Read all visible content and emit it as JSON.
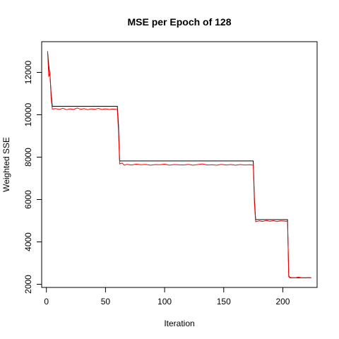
{
  "chart_data": {
    "type": "line",
    "title": "MSE per Epoch of 128",
    "xlabel": "Iteration",
    "ylabel": "Weighted SSE",
    "xlim": [
      -4,
      229
    ],
    "ylim": [
      1850,
      13450
    ],
    "x_ticks": [
      0,
      50,
      100,
      150,
      200
    ],
    "y_ticks": [
      2000,
      4000,
      6000,
      8000,
      10000,
      12000
    ],
    "x_tick_labels": [
      "0",
      "50",
      "100",
      "150",
      "200"
    ],
    "y_tick_labels": [
      "2000",
      "4000",
      "6000",
      "8000",
      "10000",
      "12000"
    ],
    "grid": false,
    "legend": "none",
    "series": [
      {
        "color": "#000000",
        "points": [
          [
            1,
            13000
          ],
          [
            2,
            12300
          ],
          [
            3,
            11900
          ],
          [
            4,
            11000
          ],
          [
            5,
            10400
          ],
          [
            60,
            10400
          ],
          [
            61,
            9500
          ],
          [
            62,
            7820
          ],
          [
            175,
            7820
          ],
          [
            176,
            6000
          ],
          [
            177,
            5050
          ],
          [
            204,
            5050
          ],
          [
            205,
            2400
          ],
          [
            206,
            2310
          ],
          [
            224,
            2310
          ]
        ]
      },
      {
        "color": "#ff0000",
        "points": [
          [
            1,
            13000
          ],
          [
            2,
            11800
          ],
          [
            3,
            12000
          ],
          [
            4,
            10800
          ],
          [
            5,
            10270
          ],
          [
            8,
            10290
          ],
          [
            11,
            10250
          ],
          [
            14,
            10310
          ],
          [
            17,
            10240
          ],
          [
            20,
            10280
          ],
          [
            23,
            10250
          ],
          [
            26,
            10320
          ],
          [
            29,
            10260
          ],
          [
            32,
            10290
          ],
          [
            35,
            10240
          ],
          [
            38,
            10280
          ],
          [
            41,
            10260
          ],
          [
            44,
            10300
          ],
          [
            47,
            10250
          ],
          [
            50,
            10280
          ],
          [
            53,
            10250
          ],
          [
            56,
            10270
          ],
          [
            59,
            10260
          ],
          [
            60,
            10240
          ],
          [
            61,
            9200
          ],
          [
            62,
            7680
          ],
          [
            64,
            7720
          ],
          [
            66,
            7620
          ],
          [
            68,
            7660
          ],
          [
            72,
            7630
          ],
          [
            76,
            7670
          ],
          [
            80,
            7640
          ],
          [
            84,
            7660
          ],
          [
            88,
            7620
          ],
          [
            92,
            7650
          ],
          [
            96,
            7640
          ],
          [
            100,
            7670
          ],
          [
            104,
            7620
          ],
          [
            108,
            7650
          ],
          [
            112,
            7640
          ],
          [
            116,
            7630
          ],
          [
            120,
            7660
          ],
          [
            124,
            7620
          ],
          [
            128,
            7650
          ],
          [
            132,
            7680
          ],
          [
            136,
            7630
          ],
          [
            140,
            7640
          ],
          [
            144,
            7620
          ],
          [
            148,
            7660
          ],
          [
            152,
            7630
          ],
          [
            156,
            7650
          ],
          [
            160,
            7620
          ],
          [
            164,
            7650
          ],
          [
            168,
            7630
          ],
          [
            172,
            7640
          ],
          [
            175,
            7620
          ],
          [
            176,
            5800
          ],
          [
            177,
            4950
          ],
          [
            180,
            4990
          ],
          [
            183,
            4960
          ],
          [
            186,
            5010
          ],
          [
            189,
            4970
          ],
          [
            192,
            5000
          ],
          [
            195,
            4960
          ],
          [
            198,
            4990
          ],
          [
            201,
            4980
          ],
          [
            204,
            4970
          ],
          [
            205,
            2350
          ],
          [
            207,
            2320
          ],
          [
            210,
            2300
          ],
          [
            213,
            2340
          ],
          [
            216,
            2310
          ],
          [
            219,
            2300
          ],
          [
            222,
            2320
          ],
          [
            224,
            2300
          ]
        ]
      }
    ]
  }
}
